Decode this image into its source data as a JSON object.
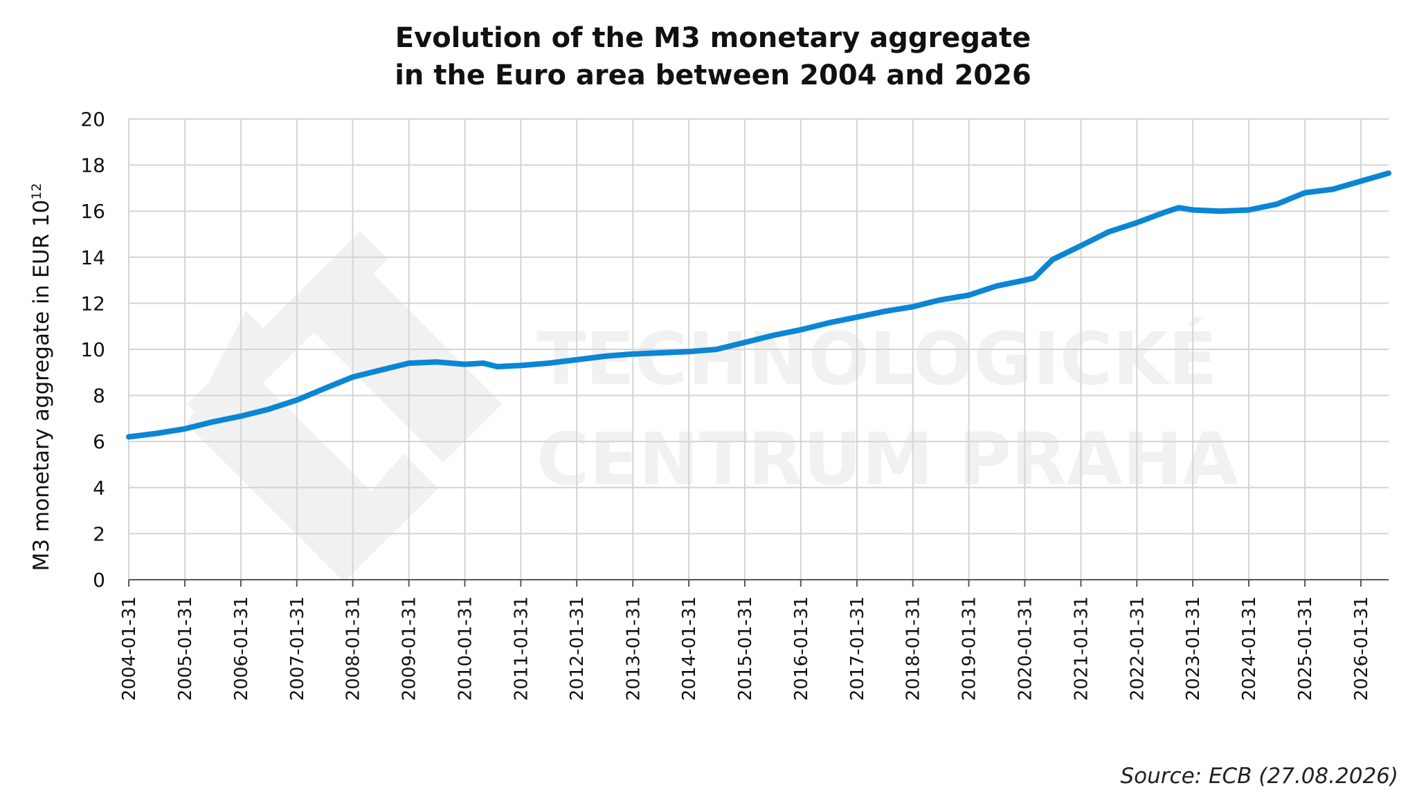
{
  "chart_data": {
    "type": "line",
    "title_lines": [
      "Evolution of the M3 monetary aggregate",
      "in the Euro area between 2004 and 2026"
    ],
    "ylabel": "M3 monetary aggregate in EUR 10",
    "ylabel_superscript": "12",
    "source": "Source: ECB (27.08.2026)",
    "watermark_lines": [
      "TECHNOLOGICKÉ",
      "CENTRUM PRAHA"
    ],
    "ylim": [
      0,
      20
    ],
    "yticks": [
      0,
      2,
      4,
      6,
      8,
      10,
      12,
      14,
      16,
      18,
      20
    ],
    "xlim": [
      "2004-01-31",
      "2026-07-31"
    ],
    "xticks": [
      "2004-01-31",
      "2005-01-31",
      "2006-01-31",
      "2007-01-31",
      "2008-01-31",
      "2009-01-31",
      "2010-01-31",
      "2011-01-31",
      "2012-01-31",
      "2013-01-31",
      "2014-01-31",
      "2015-01-31",
      "2016-01-31",
      "2017-01-31",
      "2018-01-31",
      "2019-01-31",
      "2020-01-31",
      "2021-01-31",
      "2022-01-31",
      "2023-01-31",
      "2024-01-31",
      "2025-01-31",
      "2026-01-31"
    ],
    "grid": true,
    "color": "#0a86d4",
    "series": [
      {
        "x": [
          "2004-01-31",
          "2004-07-31",
          "2005-01-31",
          "2005-07-31",
          "2006-01-31",
          "2006-07-31",
          "2007-01-31",
          "2007-07-31",
          "2008-01-31",
          "2008-07-31",
          "2009-01-31",
          "2009-07-31",
          "2010-01-31",
          "2010-05-31",
          "2010-08-31",
          "2011-01-31",
          "2011-07-31",
          "2012-01-31",
          "2012-07-31",
          "2013-01-31",
          "2013-07-31",
          "2014-01-31",
          "2014-07-31",
          "2015-01-31",
          "2015-07-31",
          "2016-01-31",
          "2016-07-31",
          "2017-01-31",
          "2017-07-31",
          "2018-01-31",
          "2018-07-31",
          "2019-01-31",
          "2019-07-31",
          "2020-01-31",
          "2020-03-31",
          "2020-07-31",
          "2021-01-31",
          "2021-07-31",
          "2022-01-31",
          "2022-07-31",
          "2022-10-31",
          "2023-01-31",
          "2023-07-31",
          "2024-01-31",
          "2024-07-31",
          "2025-01-31",
          "2025-07-31",
          "2026-01-31",
          "2026-07-31"
        ],
        "values": [
          6.2,
          6.35,
          6.55,
          6.85,
          7.1,
          7.4,
          7.8,
          8.3,
          8.8,
          9.1,
          9.4,
          9.45,
          9.35,
          9.4,
          9.25,
          9.3,
          9.4,
          9.55,
          9.7,
          9.8,
          9.85,
          9.9,
          10.0,
          10.3,
          10.6,
          10.85,
          11.15,
          11.4,
          11.65,
          11.85,
          12.15,
          12.35,
          12.75,
          13.0,
          13.1,
          13.9,
          14.5,
          15.1,
          15.5,
          15.95,
          16.15,
          16.05,
          16.0,
          16.05,
          16.3,
          16.8,
          16.95,
          17.3,
          17.65
        ]
      }
    ]
  }
}
